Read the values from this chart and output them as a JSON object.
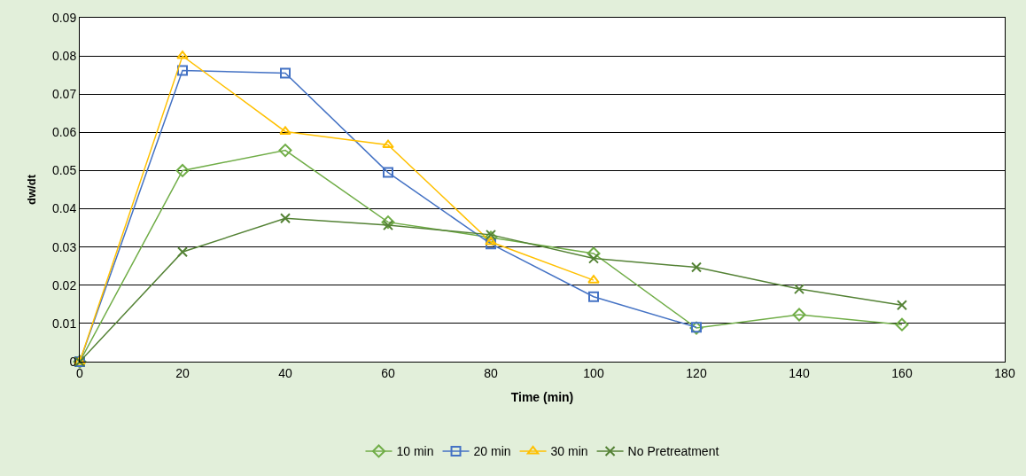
{
  "chart_data": {
    "type": "line",
    "xlabel": "Time (min)",
    "ylabel": "dw/dt",
    "xlim": [
      0,
      180
    ],
    "xticks": [
      0,
      20,
      40,
      60,
      80,
      100,
      120,
      140,
      160,
      180
    ],
    "ylim": [
      0,
      0.09
    ],
    "yticks": [
      0,
      0.01,
      0.02,
      0.03,
      0.04,
      0.05,
      0.06,
      0.07,
      0.08,
      0.09
    ],
    "grid": "y",
    "legend": "bottom",
    "series": [
      {
        "name": "10 min",
        "color": "#70ad47",
        "marker": "diamond",
        "x": [
          0,
          20,
          40,
          60,
          80,
          100,
          120,
          140,
          160
        ],
        "values": [
          0,
          0.05,
          0.0553,
          0.0365,
          0.0325,
          0.0283,
          0.0088,
          0.0123,
          0.0097
        ]
      },
      {
        "name": "20 min",
        "color": "#4472c4",
        "marker": "square",
        "x": [
          0,
          20,
          40,
          60,
          80,
          100,
          120
        ],
        "values": [
          0,
          0.0762,
          0.0755,
          0.0495,
          0.0308,
          0.017,
          0.009
        ]
      },
      {
        "name": "30 min",
        "color": "#ffc000",
        "marker": "triangle",
        "x": [
          0,
          20,
          40,
          60,
          80,
          100
        ],
        "values": [
          0,
          0.08,
          0.0602,
          0.0567,
          0.0313,
          0.0213
        ]
      },
      {
        "name": "No Pretreatment",
        "color": "#548235",
        "marker": "cross",
        "x": [
          0,
          20,
          40,
          60,
          80,
          100,
          120,
          140,
          160
        ],
        "values": [
          0,
          0.0287,
          0.0375,
          0.0357,
          0.0332,
          0.027,
          0.0247,
          0.019,
          0.0148
        ]
      }
    ]
  }
}
